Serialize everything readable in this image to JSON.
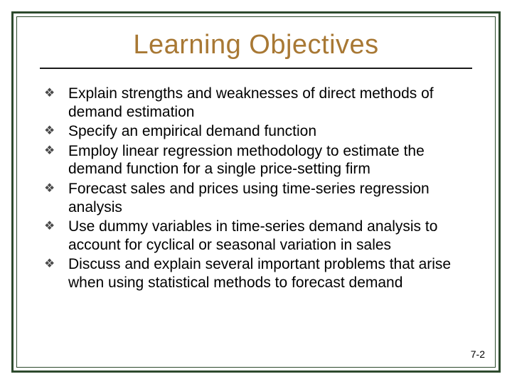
{
  "title": {
    "text": "Learning Objectives",
    "color": "#a87834",
    "font_size": 38
  },
  "divider": {
    "color": "#1a1a1a",
    "thickness": 2
  },
  "bullet": {
    "glyph": "❖",
    "color": "#4a4a4a"
  },
  "objectives": [
    "Explain strengths and weaknesses of direct methods of demand estimation",
    "Specify an empirical demand function",
    "Employ linear regression methodology to estimate the demand function for a single price-setting firm",
    "Forecast sales and prices using time-series regression analysis",
    "Use dummy variables in time-series demand analysis to account for cyclical or seasonal variation in sales",
    "Discuss and explain several important problems that arise when using statistical methods to forecast demand"
  ],
  "page_number": "7-2",
  "frame": {
    "outer_color": "#2d4a2d",
    "outer_width": 3,
    "inner_color": "#2d4a2d",
    "inner_width": 1
  },
  "body_text": {
    "font_size": 21,
    "color": "#000000"
  }
}
